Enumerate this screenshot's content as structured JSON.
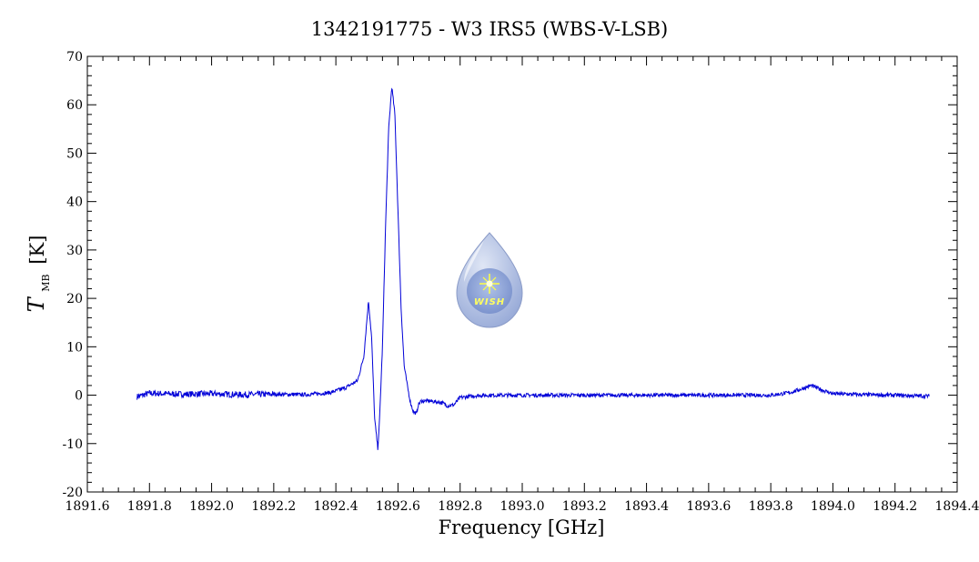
{
  "chart_data": {
    "type": "line",
    "title": "1342191775 - W3 IRS5 (WBS-V-LSB)",
    "xlabel": "Frequency [GHz]",
    "ylabel_main": "T",
    "ylabel_sub": "MB",
    "ylabel_unit": "[K]",
    "xlim": [
      1891.6,
      1894.4
    ],
    "ylim": [
      -20,
      70
    ],
    "xticks": [
      1891.6,
      1891.8,
      1892.0,
      1892.2,
      1892.4,
      1892.6,
      1892.8,
      1893.0,
      1893.2,
      1893.4,
      1893.6,
      1893.8,
      1894.0,
      1894.2,
      1894.4
    ],
    "xtick_labels": [
      "1891.6",
      "1891.8",
      "1892.0",
      "1892.2",
      "1892.4",
      "1892.6",
      "1892.8",
      "1893.0",
      "1893.2",
      "1893.4",
      "1893.6",
      "1893.8",
      "1894.0",
      "1894.2",
      "1894.4"
    ],
    "yticks": [
      -20,
      -10,
      0,
      10,
      20,
      30,
      40,
      50,
      60,
      70
    ],
    "ytick_labels": [
      "-20",
      "-10",
      "0",
      "10",
      "20",
      "30",
      "40",
      "50",
      "60",
      "70"
    ],
    "grid": false,
    "line_color": "#0000d8",
    "series": [
      {
        "x": [
          1891.76,
          1891.8,
          1891.9,
          1892.0,
          1892.1,
          1892.2,
          1892.3,
          1892.38,
          1892.43,
          1892.47,
          1892.49,
          1892.505,
          1892.515,
          1892.525,
          1892.535,
          1892.54,
          1892.55,
          1892.56,
          1892.57,
          1892.58,
          1892.59,
          1892.6,
          1892.61,
          1892.62,
          1892.63,
          1892.64,
          1892.65,
          1892.66,
          1892.665,
          1892.675,
          1892.7,
          1892.74,
          1892.76,
          1892.78,
          1892.8,
          1892.85,
          1892.9,
          1893.0,
          1893.2,
          1893.4,
          1893.6,
          1893.8,
          1893.86,
          1893.9,
          1893.93,
          1893.96,
          1894.0,
          1894.1,
          1894.2,
          1894.31
        ],
        "y": [
          -0.3,
          0.4,
          0.2,
          0.3,
          0.1,
          0.2,
          0.1,
          0.5,
          1.5,
          3.0,
          8.0,
          19.5,
          12.0,
          -5.0,
          -11.0,
          -6.0,
          10.0,
          35.0,
          55.0,
          63.8,
          58.0,
          38.0,
          18.0,
          6.0,
          2.0,
          -1.5,
          -3.5,
          -3.8,
          -2.0,
          -1.2,
          -1.2,
          -1.5,
          -2.2,
          -2.0,
          -0.5,
          -0.1,
          0.0,
          0.0,
          0.0,
          0.0,
          0.0,
          0.0,
          0.5,
          1.3,
          2.0,
          1.2,
          0.3,
          0.1,
          0.0,
          -0.2
        ]
      }
    ]
  },
  "logo": {
    "text": "WISH",
    "outer_color": "#9fb0d8",
    "inner_color": "#7f97d0",
    "star_color": "#ffff40"
  }
}
